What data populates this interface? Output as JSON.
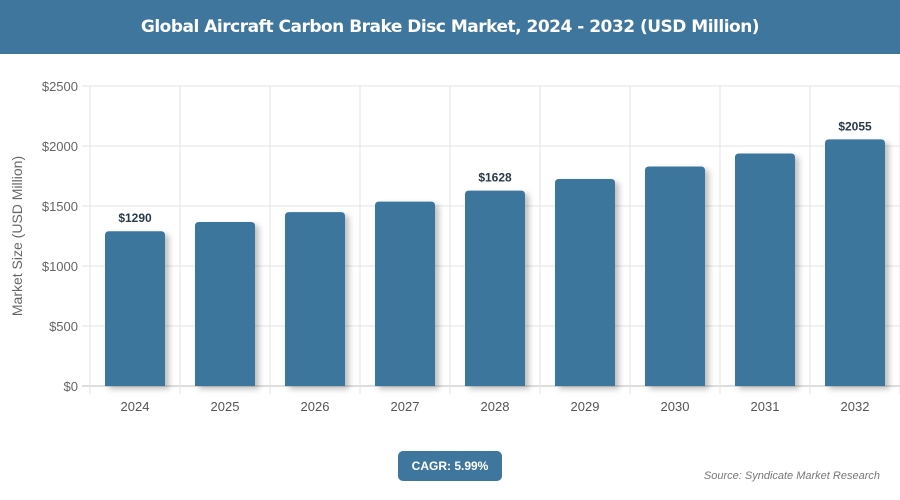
{
  "title": "Global Aircraft Carbon Brake Disc Market, 2024 - 2032 (USD Million)",
  "cagr": "CAGR: 5.99%",
  "source": "Source: Syndicate Market Research",
  "colors": {
    "bar": "#3e769d",
    "header": "#3e769d"
  },
  "chart_data": {
    "type": "bar",
    "title": "Global Aircraft Carbon Brake Disc Market, 2024 - 2032 (USD Million)",
    "xlabel": "",
    "ylabel": "Market Size (USD Million)",
    "ylim": [
      0,
      2500
    ],
    "yticks": [
      "$0",
      "$500",
      "$1000",
      "$1500",
      "$2000",
      "$2500"
    ],
    "categories": [
      "2024",
      "2025",
      "2026",
      "2027",
      "2028",
      "2029",
      "2030",
      "2031",
      "2032"
    ],
    "values": [
      1290,
      1367,
      1449,
      1536,
      1628,
      1725,
      1829,
      1938,
      2055
    ],
    "data_labels": {
      "0": "$1290",
      "4": "$1628",
      "8": "$2055"
    },
    "grid": true
  }
}
